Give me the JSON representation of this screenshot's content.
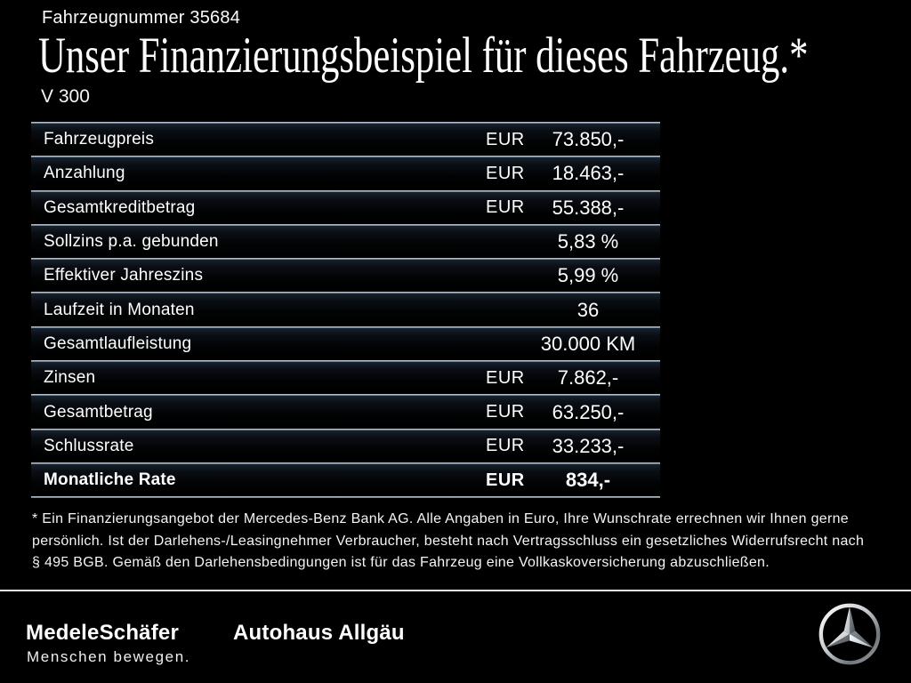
{
  "header": {
    "vehicle_number": "Fahrzeugnummer 35684",
    "title": "Unser Finanzierungsbeispiel für dieses Fahrzeug.*",
    "model": "V 300"
  },
  "financing_table": {
    "rows": [
      {
        "label": "Fahrzeugpreis",
        "currency": "EUR",
        "value": "73.850,-",
        "bold": false
      },
      {
        "label": "Anzahlung",
        "currency": "EUR",
        "value": "18.463,-",
        "bold": false
      },
      {
        "label": "Gesamtkreditbetrag",
        "currency": "EUR",
        "value": "55.388,-",
        "bold": false
      },
      {
        "label": "Sollzins p.a. gebunden",
        "currency": "",
        "value": "5,83 %",
        "bold": false
      },
      {
        "label": "Effektiver Jahreszins",
        "currency": "",
        "value": "5,99 %",
        "bold": false
      },
      {
        "label": "Laufzeit in Monaten",
        "currency": "",
        "value": "36",
        "bold": false
      },
      {
        "label": "Gesamtlaufleistung",
        "currency": "",
        "value": "30.000 KM",
        "bold": false
      },
      {
        "label": "Zinsen",
        "currency": "EUR",
        "value": "7.862,-",
        "bold": false
      },
      {
        "label": "Gesamtbetrag",
        "currency": "EUR",
        "value": "63.250,-",
        "bold": false
      },
      {
        "label": "Schlussrate",
        "currency": "EUR",
        "value": "33.233,-",
        "bold": false
      },
      {
        "label": "Monatliche Rate",
        "currency": "EUR",
        "value": "834,-",
        "bold": true
      }
    ]
  },
  "footnote": {
    "lines": [
      "* Ein Finanzierungsangebot der Mercedes-Benz Bank AG. Alle Angaben in Euro, Ihre Wunschrate errechnen wir Ihnen gerne",
      "persönlich. Ist der Darlehens-/Leasingnehmer Verbraucher, besteht nach Vertragsschluss ein gesetzliches Widerrufsrecht nach",
      "§ 495 BGB. Gemäß den Darlehensbedingungen ist für das Fahrzeug eine Vollkaskoversicherung abzuschließen."
    ]
  },
  "footer": {
    "dealer_name": "MedeleSchäfer",
    "dealer_tagline": "Menschen bewegen.",
    "dealer_branch": "Autohaus Allgäu",
    "brand_icon": "mercedes-star-icon"
  },
  "colors": {
    "background": "#000000",
    "text": "#ffffff",
    "separator_light": "#cdd7df",
    "separator_dark": "#4d6275",
    "footer_rule": "#ededed"
  }
}
